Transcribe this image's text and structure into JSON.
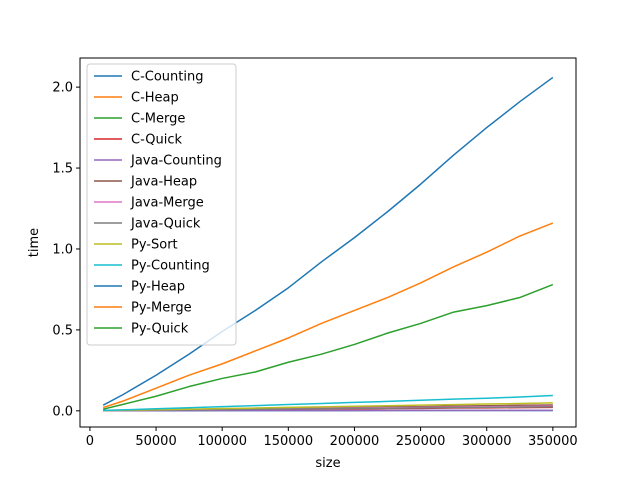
{
  "chart_data": {
    "type": "line",
    "title": "",
    "xlabel": "size",
    "ylabel": "time",
    "xlim": [
      -7500,
      367500
    ],
    "ylim": [
      -0.1,
      2.18
    ],
    "xticks": [
      0,
      50000,
      100000,
      150000,
      200000,
      250000,
      300000,
      350000
    ],
    "xtick_labels": [
      "0",
      "50000",
      "100000",
      "150000",
      "200000",
      "250000",
      "300000",
      "350000"
    ],
    "yticks": [
      0.0,
      0.5,
      1.0,
      1.5,
      2.0
    ],
    "ytick_labels": [
      "0.0",
      "0.5",
      "1.0",
      "1.5",
      "2.0"
    ],
    "grid": false,
    "legend_position": "upper-left",
    "x": [
      10000,
      25000,
      50000,
      75000,
      100000,
      125000,
      150000,
      175000,
      200000,
      225000,
      250000,
      275000,
      300000,
      325000,
      350000
    ],
    "series": [
      {
        "name": "C-Counting",
        "color": "#1f77b4",
        "values": [
          0.0005,
          0.0006,
          0.0007,
          0.0008,
          0.001,
          0.0011,
          0.0012,
          0.0013,
          0.0015,
          0.0016,
          0.0017,
          0.0018,
          0.002,
          0.0021,
          0.0022
        ]
      },
      {
        "name": "C-Heap",
        "color": "#ff7f0e",
        "values": [
          0.001,
          0.002,
          0.004,
          0.006,
          0.008,
          0.01,
          0.012,
          0.014,
          0.016,
          0.018,
          0.02,
          0.022,
          0.024,
          0.026,
          0.028
        ]
      },
      {
        "name": "C-Merge",
        "color": "#2ca02c",
        "values": [
          0.001,
          0.002,
          0.004,
          0.005,
          0.007,
          0.009,
          0.011,
          0.012,
          0.014,
          0.016,
          0.018,
          0.019,
          0.021,
          0.023,
          0.025
        ]
      },
      {
        "name": "C-Quick",
        "color": "#d62728",
        "values": [
          0.001,
          0.002,
          0.003,
          0.005,
          0.006,
          0.008,
          0.009,
          0.011,
          0.012,
          0.014,
          0.015,
          0.017,
          0.018,
          0.02,
          0.021
        ]
      },
      {
        "name": "Java-Counting",
        "color": "#9467bd",
        "values": [
          0.001,
          0.001,
          0.001,
          0.001,
          0.002,
          0.002,
          0.002,
          0.002,
          0.002,
          0.002,
          0.003,
          0.003,
          0.003,
          0.003,
          0.003
        ]
      },
      {
        "name": "Java-Heap",
        "color": "#8c564b",
        "values": [
          0.003,
          0.004,
          0.007,
          0.009,
          0.012,
          0.014,
          0.016,
          0.019,
          0.021,
          0.024,
          0.026,
          0.029,
          0.031,
          0.034,
          0.036
        ]
      },
      {
        "name": "Java-Merge",
        "color": "#e377c2",
        "values": [
          0.002,
          0.003,
          0.005,
          0.007,
          0.009,
          0.011,
          0.013,
          0.015,
          0.017,
          0.019,
          0.021,
          0.023,
          0.025,
          0.027,
          0.029
        ]
      },
      {
        "name": "Java-Quick",
        "color": "#7f7f7f",
        "values": [
          0.002,
          0.003,
          0.004,
          0.006,
          0.008,
          0.01,
          0.011,
          0.013,
          0.015,
          0.016,
          0.018,
          0.02,
          0.021,
          0.023,
          0.025
        ]
      },
      {
        "name": "Py-Sort",
        "color": "#bcbd22",
        "values": [
          0.002,
          0.004,
          0.007,
          0.01,
          0.014,
          0.017,
          0.021,
          0.024,
          0.028,
          0.031,
          0.035,
          0.038,
          0.042,
          0.045,
          0.049
        ]
      },
      {
        "name": "Py-Counting",
        "color": "#17becf",
        "values": [
          0.003,
          0.006,
          0.013,
          0.019,
          0.026,
          0.032,
          0.039,
          0.045,
          0.052,
          0.058,
          0.065,
          0.072,
          0.078,
          0.085,
          0.095
        ]
      },
      {
        "name": "Py-Heap",
        "color": "#1f77b4",
        "values": [
          0.035,
          0.1,
          0.22,
          0.35,
          0.49,
          0.62,
          0.76,
          0.92,
          1.07,
          1.23,
          1.4,
          1.58,
          1.75,
          1.91,
          2.06
        ]
      },
      {
        "name": "Py-Merge",
        "color": "#ff7f0e",
        "values": [
          0.02,
          0.06,
          0.14,
          0.22,
          0.29,
          0.37,
          0.45,
          0.54,
          0.62,
          0.7,
          0.79,
          0.89,
          0.98,
          1.08,
          1.16
        ]
      },
      {
        "name": "Py-Quick",
        "color": "#2ca02c",
        "values": [
          0.01,
          0.04,
          0.09,
          0.15,
          0.2,
          0.24,
          0.3,
          0.35,
          0.41,
          0.48,
          0.54,
          0.61,
          0.65,
          0.7,
          0.78
        ]
      }
    ]
  }
}
